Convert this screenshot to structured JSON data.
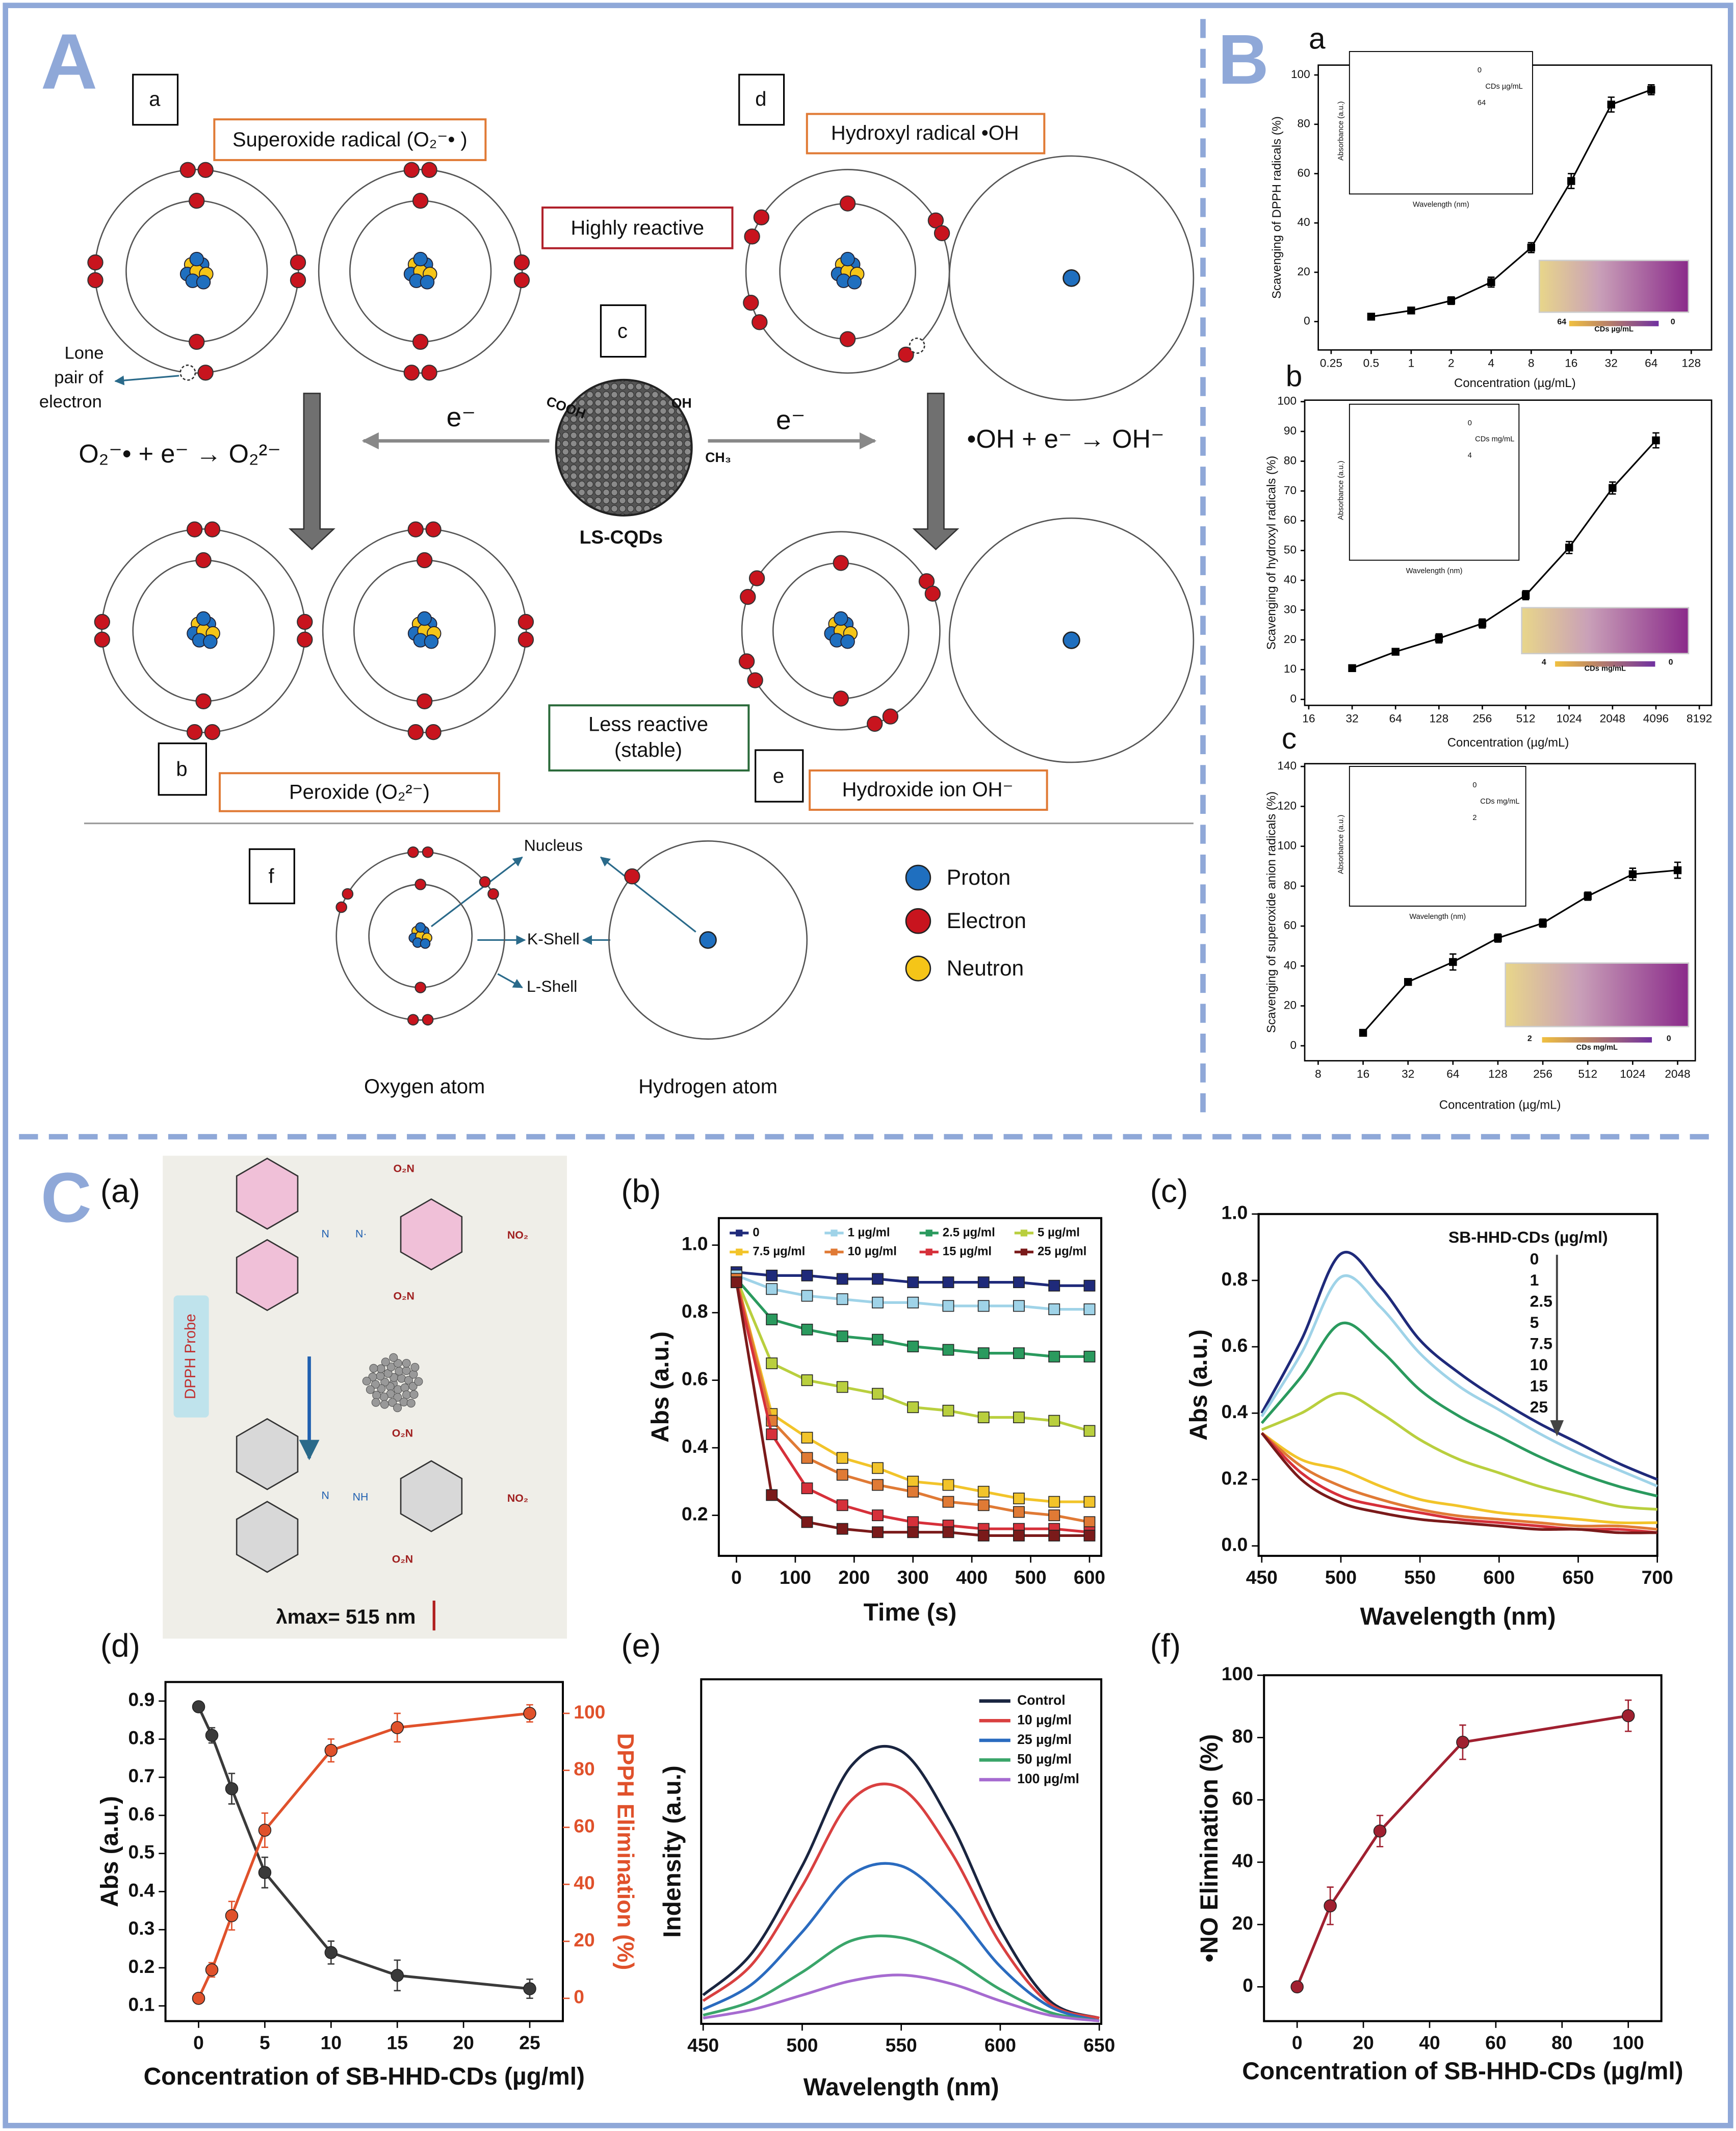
{
  "panels": {
    "A": "A",
    "B": "B",
    "C": "C"
  },
  "diagram": {
    "a": "a",
    "b": "b",
    "c": "c",
    "d": "d",
    "e": "e",
    "f": "f",
    "superoxide": "Superoxide radical (O₂⁻• )",
    "hydroxyl": "Hydroxyl radical •OH",
    "highly": "Highly reactive",
    "lone": [
      "Lone",
      "pair of",
      "electron"
    ],
    "electron_left": "e⁻",
    "electron_right": "e⁻",
    "eq_left": "O₂⁻• + e⁻ → O₂²⁻",
    "eq_right": "•OH + e⁻ → OH⁻",
    "cooh": "COOH",
    "oh": "OH",
    "ch3": "CH₃",
    "cqd": "LS-CQDs",
    "peroxide": "Peroxide (O₂²⁻)",
    "less": [
      "Less reactive",
      "(stable)"
    ],
    "hydroxide": "Hydroxide ion OH⁻",
    "nucleus": "Nucleus",
    "kshell": "K-Shell",
    "lshell": "L-Shell",
    "oxygen": "Oxygen atom",
    "hydrogen": "Hydrogen atom",
    "legend": [
      "Proton",
      "Electron",
      "Neutron"
    ]
  },
  "scheme": {
    "label": "(a)",
    "top": [
      "O₂N",
      "NO₂",
      "O₂N",
      "N",
      "N·"
    ],
    "bottom": [
      "O₂N",
      "NO₂",
      "O₂N",
      "N",
      "NH"
    ],
    "probe": "DPPH Probe",
    "lambda": "λmax= 515 nm"
  },
  "chart_data": [
    {
      "type": "line",
      "panel": "a",
      "xlabel": "Concentration (µg/mL)",
      "ylabel": "Scavenging of DPPH radicals (%)",
      "xscale": "log2",
      "marker": "square",
      "x": [
        0.5,
        1,
        2,
        4,
        8,
        16,
        32,
        64
      ],
      "series": [
        {
          "color": "#000000",
          "values": [
            2,
            4.5,
            8.5,
            16,
            30,
            57,
            88,
            94
          ],
          "errors": [
            1,
            1,
            1.5,
            2,
            2,
            3,
            3,
            2
          ]
        }
      ],
      "xlim": [
        0.2,
        182
      ],
      "ylim": [
        -11.5,
        104
      ],
      "xticks": [
        0.25,
        0.5,
        1,
        2,
        4,
        8,
        16,
        32,
        64,
        128
      ],
      "yticks": [
        0,
        20,
        40,
        60,
        80,
        100
      ],
      "inset": {
        "xlabel": "Wavelength (nm)",
        "ylabel": "Absorbance (a.u.)",
        "legend": "CDs µg/mL",
        "from": "0",
        "to": "64"
      },
      "vials": {
        "label": "CDs µg/mL",
        "from": "64",
        "to": "0"
      }
    },
    {
      "type": "line",
      "panel": "b",
      "xlabel": "Concentration (µg/mL)",
      "ylabel": "Scavenging of hydroxyl radicals (%)",
      "xscale": "log2",
      "marker": "square",
      "x": [
        32,
        64,
        128,
        256,
        512,
        1024,
        2048,
        4096
      ],
      "series": [
        {
          "color": "#000000",
          "values": [
            10.5,
            16,
            20.5,
            25.5,
            35,
            51,
            71,
            87
          ],
          "errors": [
            1,
            1,
            1.5,
            1.5,
            1.5,
            2,
            2,
            2.5
          ]
        }
      ],
      "xlim": [
        15,
        9960
      ],
      "ylim": [
        -2,
        100.5
      ],
      "xticks": [
        16,
        32,
        64,
        128,
        256,
        512,
        1024,
        2048,
        4096,
        8192
      ],
      "yticks": [
        0,
        10,
        20,
        30,
        40,
        50,
        60,
        70,
        80,
        90,
        100
      ],
      "inset": {
        "xlabel": "Wavelength (nm)",
        "ylabel": "Absorbance (a.u.)",
        "legend": "CDs mg/mL",
        "from": "0",
        "to": "4"
      },
      "vials": {
        "label": "CDs mg/mL",
        "from": "4",
        "to": "0"
      }
    },
    {
      "type": "line",
      "panel": "c",
      "xlabel": "Concentration (µg/mL)",
      "ylabel": "Scavenging of  superoxide anion radicals (%)",
      "xscale": "log2",
      "marker": "square",
      "x": [
        16,
        32,
        64,
        128,
        256,
        512,
        1024,
        2048
      ],
      "series": [
        {
          "color": "#000000",
          "values": [
            6.5,
            32,
            42,
            54,
            61.5,
            75,
            86,
            88
          ],
          "errors": [
            1,
            1.5,
            4,
            2,
            2,
            2,
            3,
            4
          ]
        }
      ],
      "xlim": [
        6.5,
        2690
      ],
      "ylim": [
        -7.5,
        141.4
      ],
      "xticks": [
        8,
        16,
        32,
        64,
        128,
        256,
        512,
        1024,
        2048
      ],
      "yticks": [
        0,
        20,
        40,
        60,
        80,
        100,
        120,
        140
      ],
      "inset": {
        "xlabel": "Wavelength (nm)",
        "ylabel": "Absorbance (a.u.)",
        "legend": "CDs mg/mL",
        "from": "0",
        "to": "2"
      },
      "vials": {
        "label": "CDs mg/mL",
        "from": "2",
        "to": "0"
      }
    },
    {
      "type": "line",
      "panel": "(b)",
      "xlabel": "Time (s)",
      "ylabel": "Abs (a.u.)",
      "marker": "square",
      "legend": "top",
      "x": [
        0,
        60,
        120,
        180,
        240,
        300,
        360,
        420,
        480,
        540,
        600
      ],
      "series": [
        {
          "name": "0",
          "color": "#1f2a7a",
          "values": [
            0.92,
            0.91,
            0.91,
            0.9,
            0.9,
            0.89,
            0.89,
            0.89,
            0.89,
            0.88,
            0.88
          ]
        },
        {
          "name": "1 µg/ml",
          "color": "#9fd3e8",
          "values": [
            0.91,
            0.87,
            0.85,
            0.84,
            0.83,
            0.83,
            0.82,
            0.82,
            0.82,
            0.81,
            0.81
          ]
        },
        {
          "name": "2.5 µg/ml",
          "color": "#2a9a5e",
          "values": [
            0.9,
            0.78,
            0.75,
            0.73,
            0.72,
            0.7,
            0.69,
            0.68,
            0.68,
            0.67,
            0.67
          ]
        },
        {
          "name": "5 µg/ml",
          "color": "#b9cf3e",
          "values": [
            0.9,
            0.65,
            0.6,
            0.58,
            0.56,
            0.52,
            0.51,
            0.49,
            0.49,
            0.48,
            0.45
          ]
        },
        {
          "name": "7.5 µg/ml",
          "color": "#f2c42a",
          "values": [
            0.9,
            0.5,
            0.43,
            0.37,
            0.34,
            0.3,
            0.29,
            0.27,
            0.25,
            0.24,
            0.24
          ]
        },
        {
          "name": "10 µg/ml",
          "color": "#e07a35",
          "values": [
            0.9,
            0.48,
            0.37,
            0.32,
            0.29,
            0.27,
            0.24,
            0.23,
            0.21,
            0.2,
            0.18
          ]
        },
        {
          "name": "15 µg/ml",
          "color": "#d6303a",
          "values": [
            0.89,
            0.44,
            0.28,
            0.23,
            0.2,
            0.18,
            0.17,
            0.16,
            0.16,
            0.16,
            0.15
          ]
        },
        {
          "name": "25 µg/ml",
          "color": "#7a1a1a",
          "values": [
            0.89,
            0.26,
            0.18,
            0.16,
            0.15,
            0.15,
            0.15,
            0.14,
            0.14,
            0.14,
            0.14
          ]
        }
      ],
      "xlim": [
        -30,
        620
      ],
      "ylim": [
        0.08,
        1.08
      ],
      "xticks": [
        0,
        100,
        200,
        300,
        400,
        500,
        600
      ],
      "yticks": [
        0.2,
        0.4,
        0.6,
        0.8,
        {
          "value": 1,
          "label": "1.0"
        }
      ]
    },
    {
      "type": "line",
      "panel": "(c)",
      "xlabel": "Wavelength (nm)",
      "ylabel": "Abs (a.u.)",
      "smooth": true,
      "legend_title": "SB-HHD-CDs (µg/ml)",
      "legend": "list",
      "x": [
        450,
        475,
        500,
        525,
        550,
        575,
        600,
        625,
        650,
        675,
        700
      ],
      "series": [
        {
          "name": "0",
          "color": "#1f2a7a",
          "values": [
            0.4,
            0.62,
            0.88,
            0.78,
            0.62,
            0.52,
            0.44,
            0.37,
            0.31,
            0.25,
            0.2
          ]
        },
        {
          "name": "1",
          "color": "#9fd3e8",
          "values": [
            0.39,
            0.58,
            0.81,
            0.72,
            0.58,
            0.48,
            0.41,
            0.34,
            0.28,
            0.23,
            0.18
          ]
        },
        {
          "name": "2.5",
          "color": "#2a9a5e",
          "values": [
            0.37,
            0.51,
            0.67,
            0.59,
            0.47,
            0.39,
            0.33,
            0.27,
            0.22,
            0.18,
            0.15
          ]
        },
        {
          "name": "5",
          "color": "#b9cf3e",
          "values": [
            0.35,
            0.4,
            0.46,
            0.4,
            0.32,
            0.26,
            0.22,
            0.18,
            0.15,
            0.12,
            0.11
          ]
        },
        {
          "name": "7.5",
          "color": "#f2c42a",
          "values": [
            0.34,
            0.26,
            0.23,
            0.18,
            0.14,
            0.12,
            0.1,
            0.09,
            0.08,
            0.07,
            0.07
          ]
        },
        {
          "name": "10",
          "color": "#e07a35",
          "values": [
            0.34,
            0.24,
            0.18,
            0.14,
            0.11,
            0.09,
            0.08,
            0.07,
            0.06,
            0.06,
            0.05
          ]
        },
        {
          "name": "15",
          "color": "#d6303a",
          "values": [
            0.34,
            0.22,
            0.15,
            0.12,
            0.1,
            0.08,
            0.07,
            0.06,
            0.05,
            0.05,
            0.04
          ]
        },
        {
          "name": "25",
          "color": "#7a1a1a",
          "values": [
            0.34,
            0.2,
            0.13,
            0.1,
            0.08,
            0.07,
            0.06,
            0.05,
            0.05,
            0.04,
            0.04
          ]
        }
      ],
      "xlim": [
        448,
        700
      ],
      "ylim": [
        -0.03,
        1.0
      ],
      "xticks": [
        450,
        500,
        550,
        600,
        650,
        700
      ],
      "yticks": [
        {
          "value": 0,
          "label": "0.0"
        },
        0.2,
        0.4,
        0.6,
        0.8,
        {
          "value": 1,
          "label": "1.0"
        }
      ]
    },
    {
      "type": "line",
      "panel": "(d)",
      "xlabel": "Concentration of SB-HHD-CDs (µg/ml)",
      "ylabel": "Abs (a.u.)",
      "y2label": "DPPH Elimination (%)",
      "marker": "circle",
      "x": [
        0,
        1,
        2.5,
        5,
        10,
        15,
        25
      ],
      "series": [
        {
          "color": "#3a3a3a",
          "values": [
            0.885,
            0.81,
            0.67,
            0.45,
            0.24,
            0.18,
            0.145
          ],
          "errors": [
            0.005,
            0.02,
            0.04,
            0.04,
            0.03,
            0.04,
            0.025
          ]
        },
        {
          "color": "#e0512b",
          "axis": "y2",
          "values": [
            0,
            10,
            29,
            59,
            87,
            95,
            100
          ],
          "errors": [
            0,
            2.5,
            5,
            6,
            4,
            5,
            3
          ]
        }
      ],
      "xlim": [
        -2.5,
        27.5
      ],
      "ylim": [
        0.06,
        0.95
      ],
      "y2lim": [
        -8,
        111
      ],
      "xticks": [
        0,
        5,
        10,
        15,
        20,
        25
      ],
      "yticks": [
        0.1,
        0.2,
        0.3,
        0.4,
        0.5,
        0.6,
        0.7,
        0.8,
        0.9
      ],
      "y2ticks": [
        0,
        20,
        40,
        60,
        80,
        100
      ]
    },
    {
      "type": "line",
      "panel": "(e)",
      "xlabel": "Wavelength (nm)",
      "ylabel": "Indensity (a.u.)",
      "smooth": true,
      "legend": "lines",
      "x": [
        450,
        475,
        500,
        525,
        550,
        575,
        600,
        625,
        650
      ],
      "series": [
        {
          "name": "Control",
          "color": "#1a2540",
          "values": [
            0.1,
            0.25,
            0.55,
            0.9,
            0.95,
            0.7,
            0.33,
            0.08,
            0.02
          ]
        },
        {
          "name": "10 µg/ml",
          "color": "#d94040",
          "values": [
            0.08,
            0.21,
            0.48,
            0.78,
            0.82,
            0.6,
            0.28,
            0.07,
            0.02
          ]
        },
        {
          "name": "25 µg/ml",
          "color": "#2a6bbf",
          "values": [
            0.05,
            0.14,
            0.32,
            0.52,
            0.55,
            0.41,
            0.2,
            0.06,
            0.01
          ]
        },
        {
          "name": "50 µg/ml",
          "color": "#3aa56a",
          "values": [
            0.03,
            0.08,
            0.18,
            0.29,
            0.3,
            0.23,
            0.12,
            0.04,
            0.01
          ]
        },
        {
          "name": "100 µg/ml",
          "color": "#a66bd0",
          "values": [
            0.02,
            0.05,
            0.1,
            0.15,
            0.17,
            0.14,
            0.08,
            0.03,
            0.01
          ]
        }
      ],
      "xlim": [
        449,
        651
      ],
      "ylim": [
        0,
        1.2
      ],
      "xticks": [
        450,
        500,
        550,
        600,
        650
      ]
    },
    {
      "type": "line",
      "panel": "(f)",
      "xlabel": "Concentration of SB-HHD-CDs (µg/ml)",
      "ylabel": "•NO Elimination (%)",
      "marker": "circle",
      "x": [
        0,
        10,
        25,
        50,
        100
      ],
      "series": [
        {
          "color": "#a02030",
          "values": [
            0,
            26,
            50,
            78.5,
            87
          ],
          "errors": [
            0,
            6,
            5,
            5.5,
            5
          ]
        }
      ],
      "xlim": [
        -10,
        110
      ],
      "ylim": [
        -11,
        100
      ],
      "xticks": [
        0,
        20,
        40,
        60,
        80,
        100
      ],
      "yticks": [
        0,
        20,
        40,
        60,
        80,
        100
      ]
    }
  ]
}
